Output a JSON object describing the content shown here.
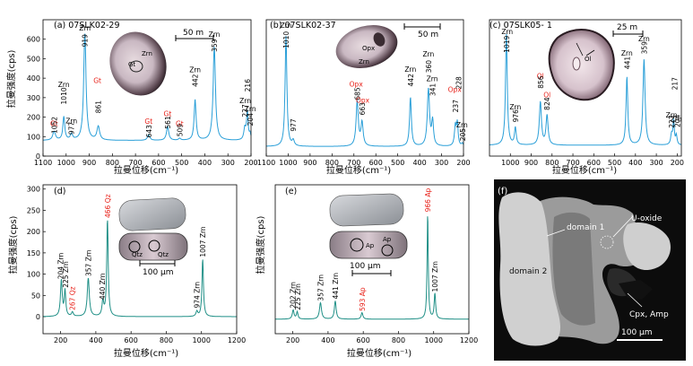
{
  "colors": {
    "spectrum_top": "#2a9fd8",
    "spectrum_bottom": "#1f8f86",
    "red_label": "#e8221a",
    "axis": "#000000"
  },
  "chart_data": [
    {
      "id": "a",
      "type": "line",
      "panel_label": "(a) 07SLK02-29",
      "scale_label": "50 m",
      "ylabel": "拉曼强度(cps)",
      "xlabel": "拉曼位移(cm⁻¹)",
      "xlim": [
        1100,
        200
      ],
      "ylim": [
        0,
        700
      ],
      "xticks": [
        1100,
        1000,
        900,
        800,
        700,
        600,
        500,
        400,
        300,
        200
      ],
      "yticks": [
        0,
        100,
        200,
        300,
        400,
        500,
        600
      ],
      "baseline": 80,
      "peaks": [
        {
          "x": 1052,
          "y": 125,
          "w": 7
        },
        {
          "x": 1010,
          "y": 200,
          "w": 5
        },
        {
          "x": 977,
          "y": 110,
          "w": 6
        },
        {
          "x": 919,
          "y": 630,
          "w": 6
        },
        {
          "x": 861,
          "y": 150,
          "w": 7
        },
        {
          "x": 643,
          "y": 110,
          "w": 6
        },
        {
          "x": 561,
          "y": 150,
          "w": 6
        },
        {
          "x": 509,
          "y": 90,
          "w": 5
        },
        {
          "x": 442,
          "y": 290,
          "w": 5
        },
        {
          "x": 359,
          "y": 560,
          "w": 6
        },
        {
          "x": 227,
          "y": 140,
          "w": 5
        },
        {
          "x": 216,
          "y": 225,
          "w": 4
        },
        {
          "x": 204,
          "y": 110,
          "w": 4
        }
      ],
      "annotations": [
        {
          "text": "Gt",
          "x": 1052,
          "y": 155,
          "color": "red"
        },
        {
          "text": "1052",
          "x": 1052,
          "y": 115,
          "color": "black",
          "rot": true
        },
        {
          "text": "Zrn",
          "x": 1010,
          "y": 355,
          "color": "black"
        },
        {
          "text": "1010",
          "x": 1010,
          "y": 265,
          "color": "black",
          "rot": true
        },
        {
          "text": "Zrn",
          "x": 977,
          "y": 168,
          "color": "black"
        },
        {
          "text": "977",
          "x": 977,
          "y": 110,
          "color": "black",
          "rot": true
        },
        {
          "text": "Zrn",
          "x": 919,
          "y": 645,
          "color": "black"
        },
        {
          "text": "919",
          "x": 919,
          "y": 560,
          "color": "black",
          "rot": true
        },
        {
          "text": "Gt",
          "x": 865,
          "y": 375,
          "color": "red"
        },
        {
          "text": "861",
          "x": 861,
          "y": 220,
          "color": "black",
          "rot": true
        },
        {
          "text": "Gt",
          "x": 643,
          "y": 165,
          "color": "red"
        },
        {
          "text": "643",
          "x": 643,
          "y": 95,
          "color": "black",
          "rot": true
        },
        {
          "text": "Gt",
          "x": 561,
          "y": 205,
          "color": "red"
        },
        {
          "text": "561",
          "x": 561,
          "y": 140,
          "color": "black",
          "rot": true
        },
        {
          "text": "Gt",
          "x": 509,
          "y": 155,
          "color": "red"
        },
        {
          "text": "509",
          "x": 509,
          "y": 100,
          "color": "black",
          "rot": true
        },
        {
          "text": "Zrn",
          "x": 442,
          "y": 430,
          "color": "black"
        },
        {
          "text": "442",
          "x": 442,
          "y": 355,
          "color": "black",
          "rot": true
        },
        {
          "text": "Zrn",
          "x": 359,
          "y": 612,
          "color": "black"
        },
        {
          "text": "359",
          "x": 359,
          "y": 535,
          "color": "black",
          "rot": true
        },
        {
          "text": "Zrn",
          "x": 225,
          "y": 272,
          "color": "black"
        },
        {
          "text": "227",
          "x": 227,
          "y": 200,
          "color": "black",
          "rot": true
        },
        {
          "text": "216",
          "x": 215,
          "y": 330,
          "color": "black",
          "rot": true
        },
        {
          "text": "Zrn",
          "x": 203,
          "y": 230,
          "color": "black"
        },
        {
          "text": "204",
          "x": 204,
          "y": 155,
          "color": "black",
          "rot": true
        }
      ],
      "image_labels": [
        "Gt",
        "Zrn"
      ]
    },
    {
      "id": "b",
      "type": "line",
      "panel_label": "(b) 07SLK02-37",
      "scale_label": "50 m",
      "xlabel": "拉曼位移(cm⁻¹)",
      "xlim": [
        1100,
        200
      ],
      "ylim": [
        0,
        500
      ],
      "xticks": [
        1100,
        1000,
        900,
        800,
        700,
        600,
        500,
        400,
        300,
        200
      ],
      "baseline": 35,
      "peaks": [
        {
          "x": 1010,
          "y": 440,
          "w": 5
        },
        {
          "x": 977,
          "y": 55,
          "w": 6
        },
        {
          "x": 685,
          "y": 200,
          "w": 6
        },
        {
          "x": 663,
          "y": 120,
          "w": 6
        },
        {
          "x": 442,
          "y": 215,
          "w": 5
        },
        {
          "x": 360,
          "y": 245,
          "w": 6
        },
        {
          "x": 341,
          "y": 125,
          "w": 5
        },
        {
          "x": 237,
          "y": 110,
          "w": 5
        },
        {
          "x": 228,
          "y": 115,
          "w": 4
        },
        {
          "x": 205,
          "y": 45,
          "w": 4
        }
      ],
      "annotations": [
        {
          "text": "Zrn",
          "x": 1010,
          "y": 470,
          "color": "black"
        },
        {
          "text": "1010",
          "x": 1010,
          "y": 395,
          "color": "black",
          "rot": true
        },
        {
          "text": "977",
          "x": 977,
          "y": 90,
          "color": "black",
          "rot": true
        },
        {
          "text": "Opx",
          "x": 690,
          "y": 255,
          "color": "red"
        },
        {
          "text": "685",
          "x": 685,
          "y": 205,
          "color": "black",
          "rot": true
        },
        {
          "text": "Opx",
          "x": 660,
          "y": 195,
          "color": "red"
        },
        {
          "text": "663",
          "x": 663,
          "y": 150,
          "color": "black",
          "rot": true
        },
        {
          "text": "Zrn",
          "x": 442,
          "y": 310,
          "color": "black"
        },
        {
          "text": "442",
          "x": 442,
          "y": 255,
          "color": "black",
          "rot": true
        },
        {
          "text": "Zrn",
          "x": 360,
          "y": 365,
          "color": "black"
        },
        {
          "text": "360",
          "x": 360,
          "y": 305,
          "color": "black",
          "rot": true
        },
        {
          "text": "Zrn",
          "x": 343,
          "y": 275,
          "color": "black"
        },
        {
          "text": "341",
          "x": 341,
          "y": 220,
          "color": "black",
          "rot": true
        },
        {
          "text": "Opx",
          "x": 240,
          "y": 235,
          "color": "red"
        },
        {
          "text": "237",
          "x": 237,
          "y": 160,
          "color": "black",
          "rot": true
        },
        {
          "text": "228",
          "x": 222,
          "y": 245,
          "color": "black",
          "rot": true
        },
        {
          "text": "Zrn",
          "x": 207,
          "y": 105,
          "color": "black"
        },
        {
          "text": "205",
          "x": 205,
          "y": 55,
          "color": "black",
          "rot": true
        }
      ],
      "image_labels": [
        "Opx",
        "Zrn"
      ]
    },
    {
      "id": "c",
      "type": "line",
      "panel_label": "(c) 07SLK05- 1",
      "scale_label": "25 m",
      "xlabel": "拉曼位移(cm⁻¹)",
      "xlim": [
        1100,
        180
      ],
      "ylim": [
        0,
        1900
      ],
      "xticks": [
        1000,
        900,
        800,
        700,
        600,
        500,
        400,
        300,
        200
      ],
      "baseline": 150,
      "peaks": [
        {
          "x": 1019,
          "y": 1700,
          "w": 5
        },
        {
          "x": 976,
          "y": 390,
          "w": 5
        },
        {
          "x": 856,
          "y": 750,
          "w": 6
        },
        {
          "x": 824,
          "y": 560,
          "w": 6
        },
        {
          "x": 441,
          "y": 1100,
          "w": 5
        },
        {
          "x": 359,
          "y": 1350,
          "w": 6
        },
        {
          "x": 227,
          "y": 290,
          "w": 5
        },
        {
          "x": 217,
          "y": 480,
          "w": 4
        },
        {
          "x": 204,
          "y": 280,
          "w": 4
        }
      ],
      "annotations": [
        {
          "text": "Zrn",
          "x": 1015,
          "y": 1700,
          "color": "black"
        },
        {
          "text": "1019",
          "x": 1019,
          "y": 1440,
          "color": "black",
          "rot": true
        },
        {
          "text": "Zrn",
          "x": 976,
          "y": 650,
          "color": "black"
        },
        {
          "text": "976",
          "x": 976,
          "y": 470,
          "color": "black",
          "rot": true
        },
        {
          "text": "Ol",
          "x": 856,
          "y": 1080,
          "color": "red"
        },
        {
          "text": "856",
          "x": 856,
          "y": 940,
          "color": "black",
          "rot": true
        },
        {
          "text": "Ol",
          "x": 824,
          "y": 820,
          "color": "red"
        },
        {
          "text": "824",
          "x": 824,
          "y": 640,
          "color": "black",
          "rot": true
        },
        {
          "text": "Zrn",
          "x": 441,
          "y": 1400,
          "color": "black"
        },
        {
          "text": "441",
          "x": 441,
          "y": 1210,
          "color": "black",
          "rot": true
        },
        {
          "text": "Zrn",
          "x": 359,
          "y": 1600,
          "color": "black"
        },
        {
          "text": "359",
          "x": 359,
          "y": 1420,
          "color": "black",
          "rot": true
        },
        {
          "text": "Zrn",
          "x": 227,
          "y": 540,
          "color": "black"
        },
        {
          "text": "227",
          "x": 227,
          "y": 390,
          "color": "black",
          "rot": true
        },
        {
          "text": "217",
          "x": 212,
          "y": 920,
          "color": "black",
          "rot": true
        },
        {
          "text": "Zrn",
          "x": 205,
          "y": 480,
          "color": "black"
        },
        {
          "text": "204",
          "x": 200,
          "y": 400,
          "color": "black",
          "rot": true
        }
      ],
      "image_labels": [
        "Ol"
      ]
    },
    {
      "id": "d",
      "type": "line",
      "panel_label": "(d)",
      "scale_label": "100 μm",
      "ylabel": "拉曼强度(cps)",
      "xlabel": "拉曼位移(cm⁻¹)",
      "xlim": [
        100,
        1200
      ],
      "ylim": [
        -40,
        310
      ],
      "xticks": [
        200,
        400,
        600,
        800,
        1000,
        1200
      ],
      "yticks": [
        0,
        50,
        100,
        150,
        200,
        250,
        300
      ],
      "baseline": 0,
      "peaks": [
        {
          "x": 204,
          "y": 85,
          "w": 6
        },
        {
          "x": 225,
          "y": 60,
          "w": 5
        },
        {
          "x": 267,
          "y": 10,
          "w": 6
        },
        {
          "x": 357,
          "y": 90,
          "w": 7
        },
        {
          "x": 440,
          "y": 35,
          "w": 6
        },
        {
          "x": 466,
          "y": 228,
          "w": 5
        },
        {
          "x": 974,
          "y": 12,
          "w": 6
        },
        {
          "x": 1007,
          "y": 135,
          "w": 5
        }
      ],
      "annotations": [
        {
          "text": "204 Zrn",
          "x": 200,
          "y": 88,
          "color": "black",
          "rot": true
        },
        {
          "text": "225 Zrn",
          "x": 228,
          "y": 68,
          "color": "black",
          "rot": true
        },
        {
          "text": "267 Qz",
          "x": 265,
          "y": 15,
          "color": "red",
          "rot": true
        },
        {
          "text": "357 Zrn",
          "x": 357,
          "y": 95,
          "color": "black",
          "rot": true
        },
        {
          "text": "440 Zrn",
          "x": 436,
          "y": 40,
          "color": "black",
          "rot": true
        },
        {
          "text": "466 Qz",
          "x": 466,
          "y": 232,
          "color": "red",
          "rot": true
        },
        {
          "text": "974 Zrn",
          "x": 974,
          "y": 20,
          "color": "black",
          "rot": true
        },
        {
          "text": "1007 Zrn",
          "x": 1007,
          "y": 140,
          "color": "black",
          "rot": true
        }
      ],
      "image_labels": [
        "Qtz",
        "Qtz"
      ]
    },
    {
      "id": "e",
      "type": "line",
      "panel_label": "(e)",
      "scale_label": "100 μm",
      "ylabel": "拉曼强度(cps)",
      "xlabel": "拉曼位移(cm⁻¹)",
      "xlim": [
        100,
        1200
      ],
      "ylim": [
        -40,
        370
      ],
      "xticks": [
        200,
        400,
        600,
        800,
        1000,
        1200
      ],
      "baseline": 0,
      "peaks": [
        {
          "x": 202,
          "y": 25,
          "w": 6
        },
        {
          "x": 225,
          "y": 20,
          "w": 5
        },
        {
          "x": 357,
          "y": 45,
          "w": 7
        },
        {
          "x": 441,
          "y": 50,
          "w": 6
        },
        {
          "x": 593,
          "y": 18,
          "w": 6
        },
        {
          "x": 966,
          "y": 290,
          "w": 4
        },
        {
          "x": 1007,
          "y": 70,
          "w": 5
        }
      ],
      "annotations": [
        {
          "text": "202 Zrn",
          "x": 200,
          "y": 30,
          "color": "black",
          "rot": true
        },
        {
          "text": "225 Zrn",
          "x": 228,
          "y": 25,
          "color": "black",
          "rot": true
        },
        {
          "text": "357 Zrn",
          "x": 357,
          "y": 50,
          "color": "black",
          "rot": true
        },
        {
          "text": "441 Zrn",
          "x": 441,
          "y": 55,
          "color": "black",
          "rot": true
        },
        {
          "text": "593 Ap",
          "x": 593,
          "y": 22,
          "color": "red",
          "rot": true
        },
        {
          "text": "966 Ap",
          "x": 966,
          "y": 295,
          "color": "red",
          "rot": true
        },
        {
          "text": "1007 Zrn",
          "x": 1007,
          "y": 75,
          "color": "black",
          "rot": true
        }
      ],
      "image_labels": [
        "Ap",
        "Ap"
      ]
    }
  ],
  "panel_f": {
    "label": "(f)",
    "u_oxide": "U-oxide",
    "domain1": "domain 1",
    "domain2": "domain 2",
    "cpx_amp": "Cpx, Amp",
    "scale": "100 μm"
  }
}
